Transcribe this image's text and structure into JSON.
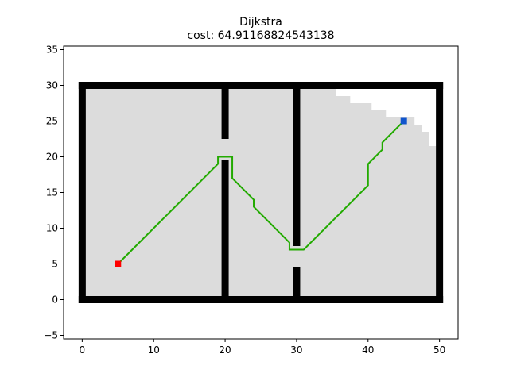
{
  "chart_data": {
    "type": "scatter",
    "title": "Dijkstra",
    "subtitle": "cost: 64.91168824543138",
    "xlabel": "",
    "ylabel": "",
    "xlim": [
      -2.6,
      52.6
    ],
    "ylim": [
      -5.5,
      35.5
    ],
    "x_ticks": [
      0,
      10,
      20,
      30,
      40,
      50
    ],
    "y_ticks": [
      -5,
      0,
      5,
      10,
      15,
      20,
      25,
      30,
      35
    ],
    "grid": false,
    "colors": {
      "visited": "#dcdcdc",
      "obstacle": "#000000",
      "path": "#22aa00",
      "start": "#ff0000",
      "goal": "#1155cc"
    },
    "start": [
      5,
      5
    ],
    "goal": [
      45,
      25
    ],
    "path": [
      [
        5,
        5
      ],
      [
        19,
        19
      ],
      [
        19,
        20
      ],
      [
        21,
        20
      ],
      [
        21,
        17
      ],
      [
        24,
        14
      ],
      [
        24,
        13
      ],
      [
        29,
        8
      ],
      [
        29,
        7
      ],
      [
        31,
        7
      ],
      [
        40,
        16
      ],
      [
        40,
        19
      ],
      [
        42,
        21
      ],
      [
        42,
        22
      ],
      [
        45,
        25
      ]
    ],
    "walls": [
      [
        [
          0,
          0
        ],
        [
          50,
          0
        ]
      ],
      [
        [
          0,
          30
        ],
        [
          50,
          30
        ]
      ],
      [
        [
          0,
          0
        ],
        [
          0,
          30
        ]
      ],
      [
        [
          50,
          0
        ],
        [
          50,
          30
        ]
      ],
      [
        [
          20,
          0
        ],
        [
          20,
          19
        ]
      ],
      [
        [
          20,
          23
        ],
        [
          20,
          30
        ]
      ],
      [
        [
          30,
          0
        ],
        [
          30,
          4
        ]
      ],
      [
        [
          30,
          8
        ],
        [
          30,
          30
        ]
      ]
    ],
    "visited_regions": [
      [
        0,
        0,
        50,
        30
      ]
    ],
    "unvisited_regions": [
      [
        35.5,
        28.5,
        14,
        1.5
      ],
      [
        37.5,
        27.5,
        12,
        1
      ],
      [
        40.5,
        26.5,
        9,
        1
      ],
      [
        42.5,
        25.5,
        7,
        1
      ],
      [
        46.5,
        24.5,
        3,
        1
      ],
      [
        47.5,
        23.5,
        2,
        1
      ],
      [
        48.5,
        21.5,
        1,
        2
      ]
    ]
  }
}
